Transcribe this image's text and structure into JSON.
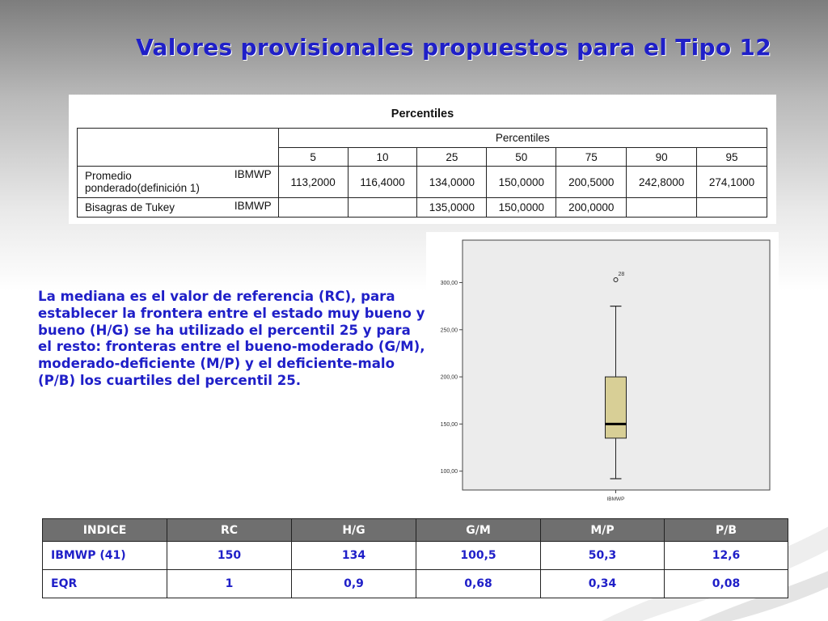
{
  "slide": {
    "title": "Valores provisionales propuestos para el Tipo 12",
    "description": "La mediana es el valor de referencia (RC), para establecer la frontera entre el estado muy bueno y bueno (H/G) se ha utilizado el percentil 25 y para el resto: fronteras entre el bueno-moderado (G/M), moderado-deficiente (M/P) y el deficiente-malo (P/B) los cuartiles del percentil 25."
  },
  "percentile_table": {
    "title": "Percentiles",
    "group_header": "Percentiles",
    "columns": [
      "5",
      "10",
      "25",
      "50",
      "75",
      "90",
      "95"
    ],
    "rows": [
      {
        "label_line1": "Promedio",
        "label_line2": "ponderado(definición 1)",
        "variable": "IBMWP",
        "values": [
          "113,2000",
          "116,4000",
          "134,0000",
          "150,0000",
          "200,5000",
          "242,8000",
          "274,1000"
        ]
      },
      {
        "label_line1": "Bisagras de Tukey",
        "variable": "IBMWP",
        "values": [
          "",
          "",
          "135,0000",
          "150,0000",
          "200,0000",
          "",
          ""
        ]
      }
    ]
  },
  "summary_table": {
    "headers": [
      "INDICE",
      "RC",
      "H/G",
      "G/M",
      "M/P",
      "P/B"
    ],
    "rows": [
      [
        "IBMWP (41)",
        "150",
        "134",
        "100,5",
        "50,3",
        "12,6"
      ],
      [
        "EQR",
        "1",
        "0,9",
        "0,68",
        "0,34",
        "0,08"
      ]
    ]
  },
  "chart_data": {
    "type": "boxplot",
    "categories": [
      "IBMWP"
    ],
    "y_ticks": [
      100,
      150,
      200,
      250,
      300
    ],
    "y_tick_labels": [
      "100,00",
      "150,00",
      "200,00",
      "250,00",
      "300,00"
    ],
    "ylim": [
      80,
      345
    ],
    "box": {
      "whisker_low": 92,
      "q1": 135,
      "median": 150,
      "q3": 200,
      "whisker_high": 275
    },
    "outliers": [
      {
        "value": 303,
        "label": "28"
      }
    ],
    "colors": {
      "box_fill": "#d8cf96",
      "plot_bg": "#ececec"
    }
  }
}
